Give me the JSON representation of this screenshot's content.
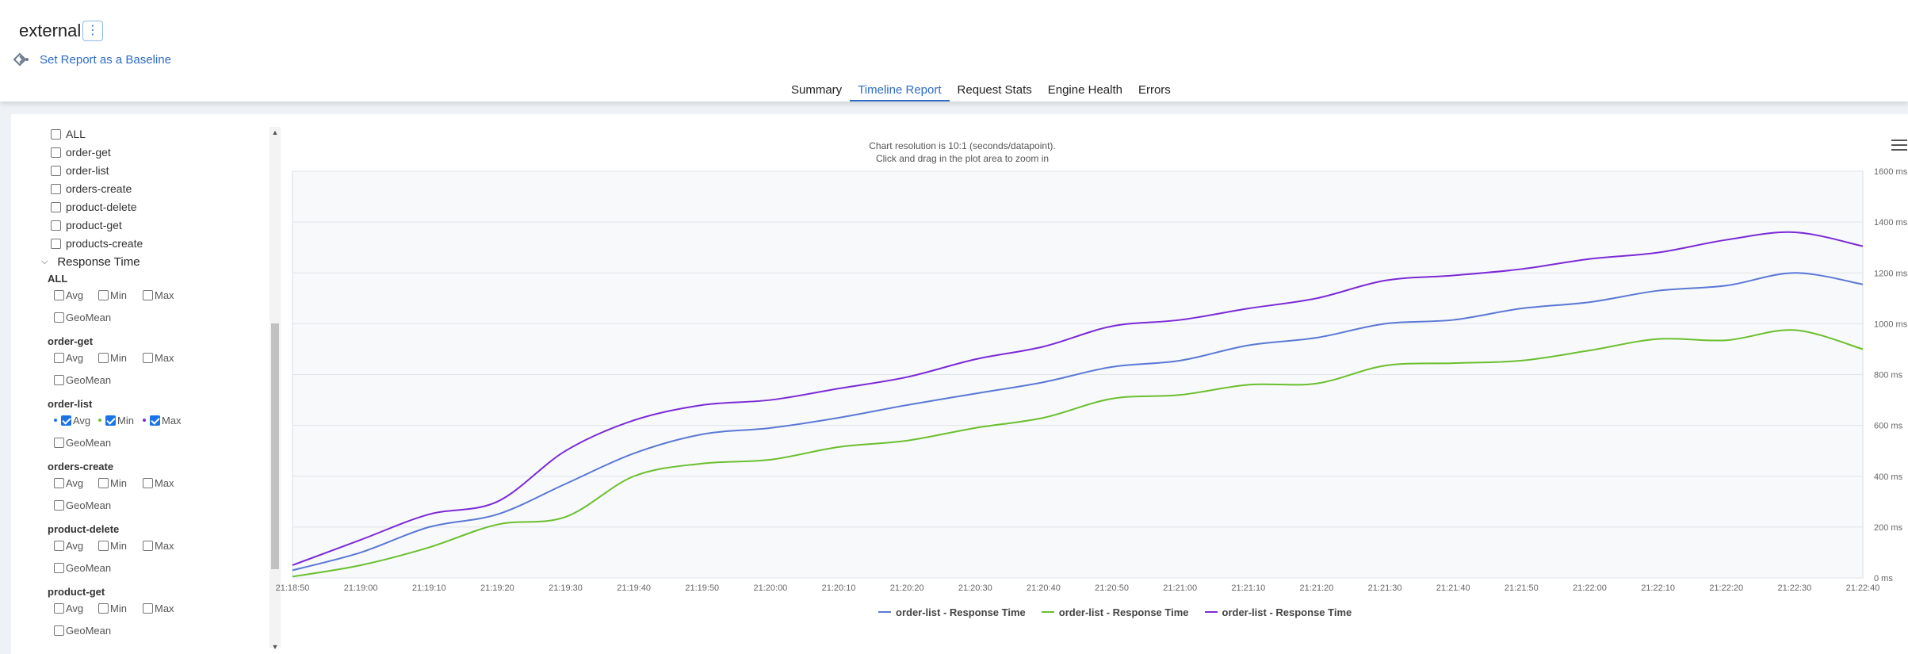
{
  "header": {
    "report_name": "external",
    "kebab_label": "⋮",
    "baseline_label": "Set Report as a Baseline",
    "tabs": [
      {
        "label": "Summary",
        "active": false
      },
      {
        "label": "Timeline Report",
        "active": true
      },
      {
        "label": "Request Stats",
        "active": false
      },
      {
        "label": "Engine Health",
        "active": false
      },
      {
        "label": "Errors",
        "active": false
      }
    ]
  },
  "sidebar": {
    "label_items": [
      {
        "label": "ALL",
        "checked": false
      },
      {
        "label": "order-get",
        "checked": false
      },
      {
        "label": "order-list",
        "checked": false
      },
      {
        "label": "orders-create",
        "checked": false
      },
      {
        "label": "product-delete",
        "checked": false
      },
      {
        "label": "product-get",
        "checked": false
      },
      {
        "label": "products-create",
        "checked": false
      }
    ],
    "section_title": "Response Time",
    "option_labels": {
      "avg": "Avg",
      "min": "Min",
      "max": "Max",
      "geomean": "GeoMean"
    },
    "groups": [
      {
        "name": "ALL",
        "avg": false,
        "min": false,
        "max": false,
        "geomean": false
      },
      {
        "name": "order-get",
        "avg": false,
        "min": false,
        "max": false,
        "geomean": false
      },
      {
        "name": "order-list",
        "avg": true,
        "min": true,
        "max": true,
        "geomean": false
      },
      {
        "name": "orders-create",
        "avg": false,
        "min": false,
        "max": false,
        "geomean": false
      },
      {
        "name": "product-delete",
        "avg": false,
        "min": false,
        "max": false,
        "geomean": false
      },
      {
        "name": "product-get",
        "avg": false,
        "min": false,
        "max": false,
        "geomean": false
      }
    ],
    "dot_colors": {
      "avg": "#1a73e8",
      "min": "#6abf2e",
      "max": "#7b2ad6"
    }
  },
  "chart_header": {
    "line1": "Chart resolution is 10:1 (seconds/datapoint).",
    "line2": "Click and drag in the plot area to zoom in"
  },
  "chart_data": {
    "type": "line",
    "x_tick_labels": [
      "21:18:50",
      "21:19:00",
      "21:19:10",
      "21:19:20",
      "21:19:30",
      "21:19:40",
      "21:19:50",
      "21:20:00",
      "21:20:10",
      "21:20:20",
      "21:20:30",
      "21:20:40",
      "21:20:50",
      "21:21:00",
      "21:21:10",
      "21:21:20",
      "21:21:30",
      "21:21:40",
      "21:21:50",
      "21:22:00",
      "21:22:10",
      "21:22:20",
      "21:22:30",
      "21:22:40"
    ],
    "y_tick_labels": [
      "0 ms",
      "200 ms",
      "400 ms",
      "600 ms",
      "800 ms",
      "1000 ms",
      "1200 ms",
      "1400 ms",
      "1600 ms"
    ],
    "ylim": [
      0,
      1600
    ],
    "grid": true,
    "legend_position": "bottom-center",
    "series": [
      {
        "name": "order-list - Response Time",
        "color": "#5a78d6",
        "values": [
          30,
          100,
          200,
          250,
          370,
          490,
          565,
          590,
          630,
          680,
          725,
          770,
          830,
          855,
          915,
          945,
          1000,
          1015,
          1060,
          1085,
          1130,
          1150,
          1200,
          1155
        ]
      },
      {
        "name": "order-list - Response Time",
        "color": "#6abf2e",
        "values": [
          5,
          50,
          120,
          210,
          240,
          400,
          450,
          465,
          515,
          540,
          590,
          630,
          705,
          720,
          760,
          765,
          835,
          845,
          855,
          895,
          940,
          935,
          975,
          900
        ]
      },
      {
        "name": "order-list - Response Time",
        "color": "#7b2ad6",
        "values": [
          50,
          150,
          250,
          300,
          500,
          620,
          680,
          700,
          745,
          790,
          860,
          910,
          990,
          1015,
          1060,
          1100,
          1170,
          1190,
          1215,
          1255,
          1280,
          1330,
          1360,
          1305
        ]
      }
    ]
  }
}
